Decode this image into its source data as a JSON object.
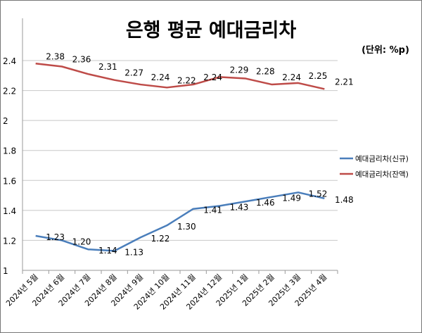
{
  "chart_data": {
    "type": "line",
    "title": "은행 평균 예대금리차",
    "unit_label": "(단위: %p)",
    "categories": [
      "2024년 5월",
      "2024년 6월",
      "2024년 7월",
      "2024년 8월",
      "2024년 9월",
      "2024년 10월",
      "2024년 11월",
      "2024년 12월",
      "2025년 1월",
      "2025년 2월",
      "2025년 3월",
      "2025년 4월"
    ],
    "yticks": [
      "1",
      "1.2",
      "1.4",
      "1.6",
      "1.8",
      "2",
      "2.2",
      "2.4"
    ],
    "ylim": [
      1,
      2.4
    ],
    "grid": true,
    "legend": "right",
    "series": [
      {
        "name": "예대금리차(신규)",
        "color": "#4a7ebb",
        "values": [
          1.23,
          1.2,
          1.14,
          1.13,
          1.22,
          1.3,
          1.41,
          1.43,
          1.46,
          1.49,
          1.52,
          1.48
        ],
        "labels": [
          "1.23",
          "1.20",
          "1.14",
          "1.13",
          "1.22",
          "1.30",
          "1.41",
          "1.43",
          "1.46",
          "1.49",
          "1.52",
          "1.48"
        ]
      },
      {
        "name": "예대금리차(잔액)",
        "color": "#be4b48",
        "values": [
          2.38,
          2.36,
          2.31,
          2.27,
          2.24,
          2.22,
          2.24,
          2.29,
          2.28,
          2.24,
          2.25,
          2.21
        ],
        "labels": [
          "2.38",
          "2.36",
          "2.31",
          "2.27",
          "2.24",
          "2.22",
          "2.24",
          "2.29",
          "2.28",
          "2.24",
          "2.25",
          "2.21"
        ]
      }
    ]
  }
}
